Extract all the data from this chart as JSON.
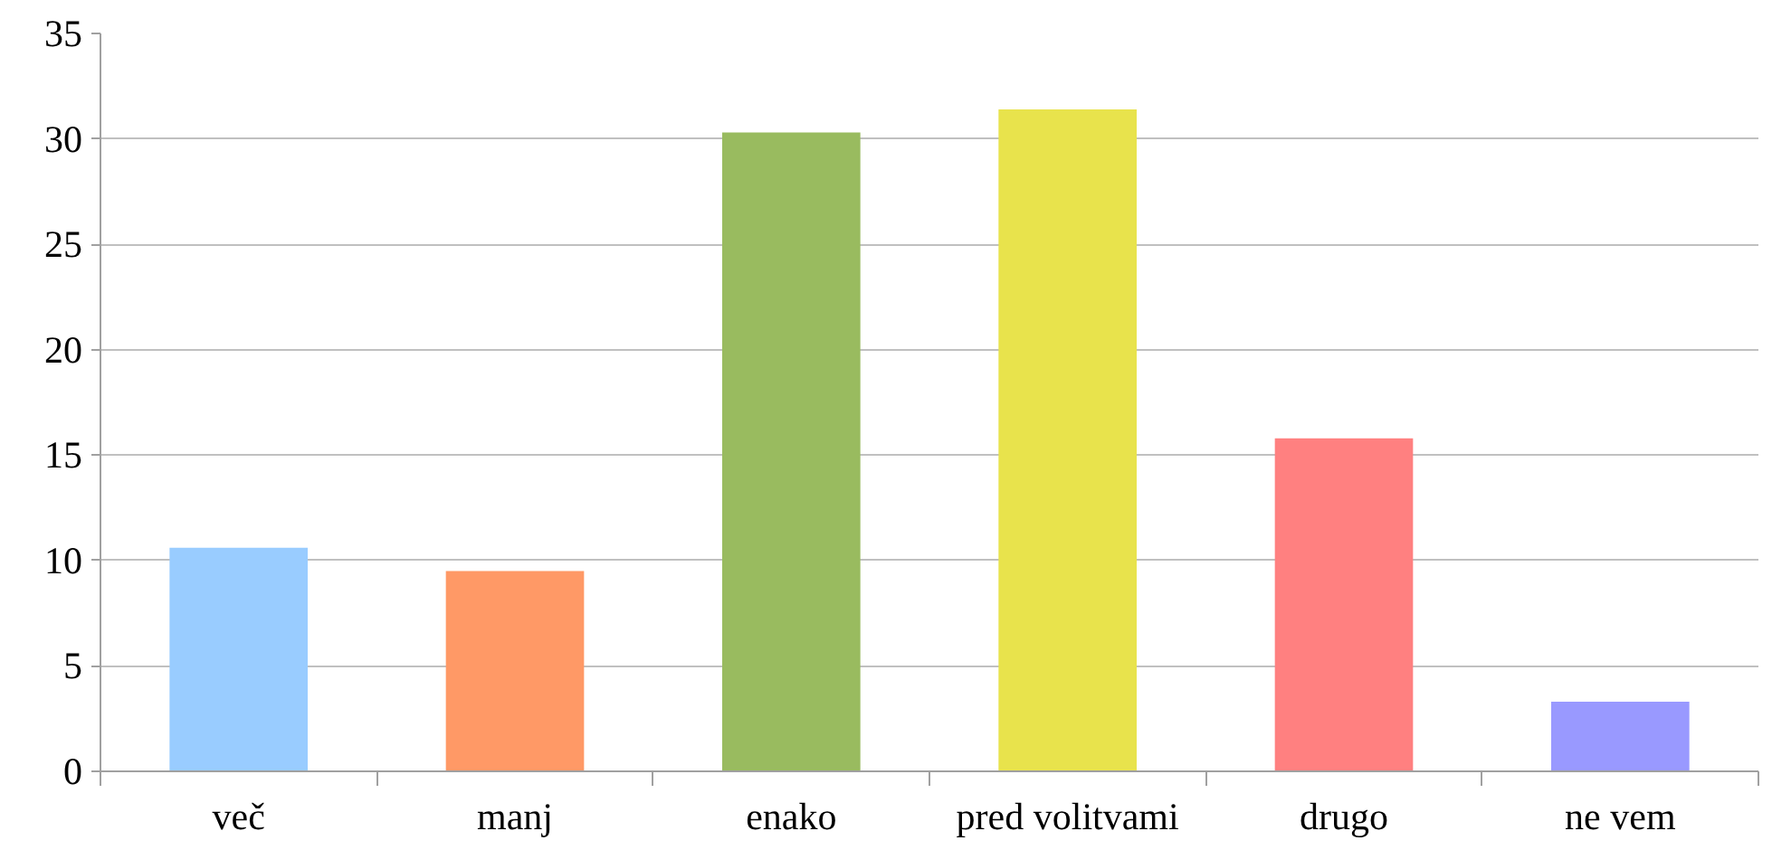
{
  "chart_data": {
    "type": "bar",
    "categories": [
      "več",
      "manj",
      "enako",
      "pred volitvami",
      "drugo",
      "ne vem"
    ],
    "values": [
      10.6,
      9.5,
      30.3,
      31.4,
      15.8,
      3.3
    ],
    "colors": [
      "#99ccff",
      "#ff9966",
      "#99bb5f",
      "#e8e34c",
      "#ff8080",
      "#9999ff"
    ],
    "ylim": [
      0,
      35
    ],
    "yticks": [
      0,
      5,
      10,
      15,
      20,
      25,
      30,
      35
    ],
    "grid": "y"
  }
}
